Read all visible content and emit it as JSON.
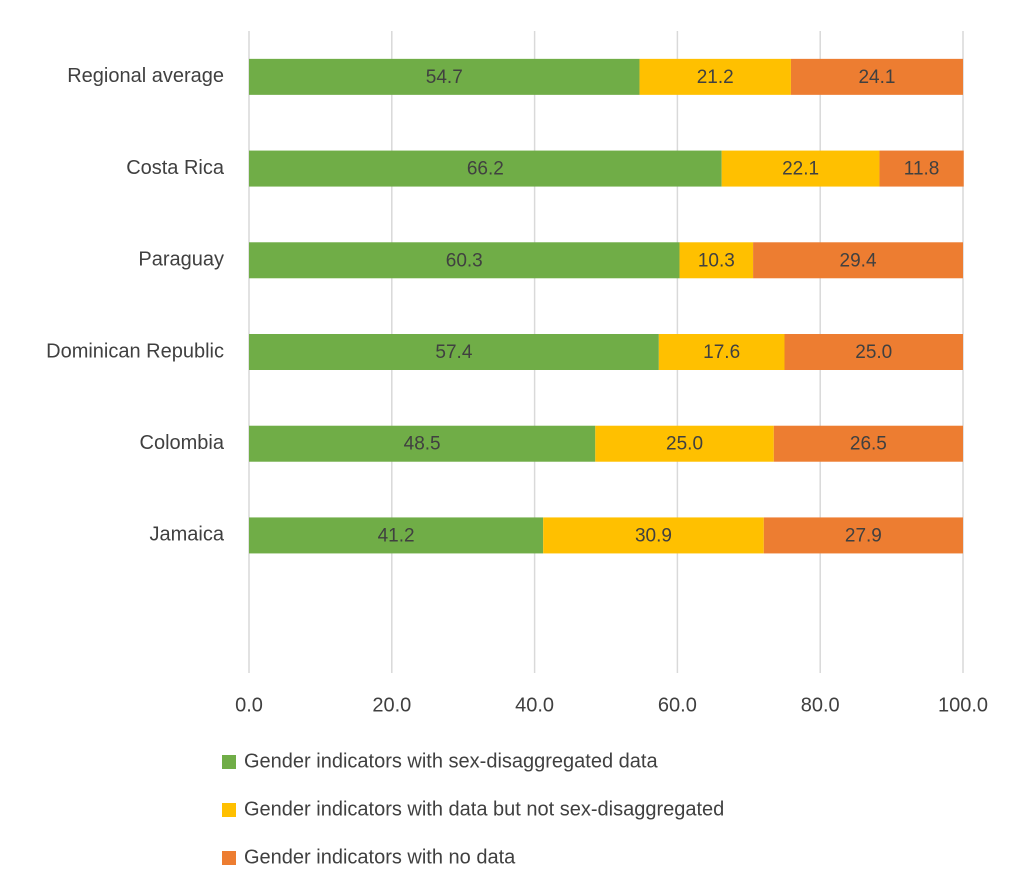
{
  "chart_data": {
    "type": "stacked-barh",
    "categories": [
      "Regional average",
      "Costa Rica",
      "Paraguay",
      "Dominican Republic",
      "Colombia",
      "Jamaica",
      null
    ],
    "series": [
      {
        "name": "Gender indicators with sex-disaggregated data",
        "color": "#70ad47",
        "values": [
          54.7,
          66.2,
          60.3,
          57.4,
          48.5,
          41.2,
          null
        ],
        "value_labels": [
          "54.7",
          "66.2",
          "60.3",
          "57.4",
          "48.5",
          "41.2",
          null
        ]
      },
      {
        "name": "Gender indicators with data but not sex-disaggregated",
        "color": "#ffc000",
        "values": [
          21.2,
          22.1,
          10.3,
          17.6,
          25,
          30.9,
          null
        ],
        "value_labels": [
          "21.2",
          "22.1",
          "10.3",
          "17.6",
          "25.0",
          "30.9",
          null
        ]
      },
      {
        "name": "Gender indicators with no data",
        "color": "#ed7d31",
        "values": [
          24.1,
          11.8,
          29.4,
          25,
          26.5,
          27.9,
          null
        ],
        "value_labels": [
          "24.1",
          "11.8",
          "29.4",
          "25.0",
          "26.5",
          "27.9",
          null
        ]
      }
    ],
    "xlim": [
      0,
      100
    ],
    "xticks": [
      {
        "value": 0,
        "label": "0.0"
      },
      {
        "value": 20,
        "label": "20.0"
      },
      {
        "value": 40,
        "label": "40.0"
      },
      {
        "value": 60,
        "label": "60.0"
      },
      {
        "value": 80,
        "label": "80.0"
      },
      {
        "value": 100,
        "label": "100.0"
      }
    ],
    "grid": true
  }
}
